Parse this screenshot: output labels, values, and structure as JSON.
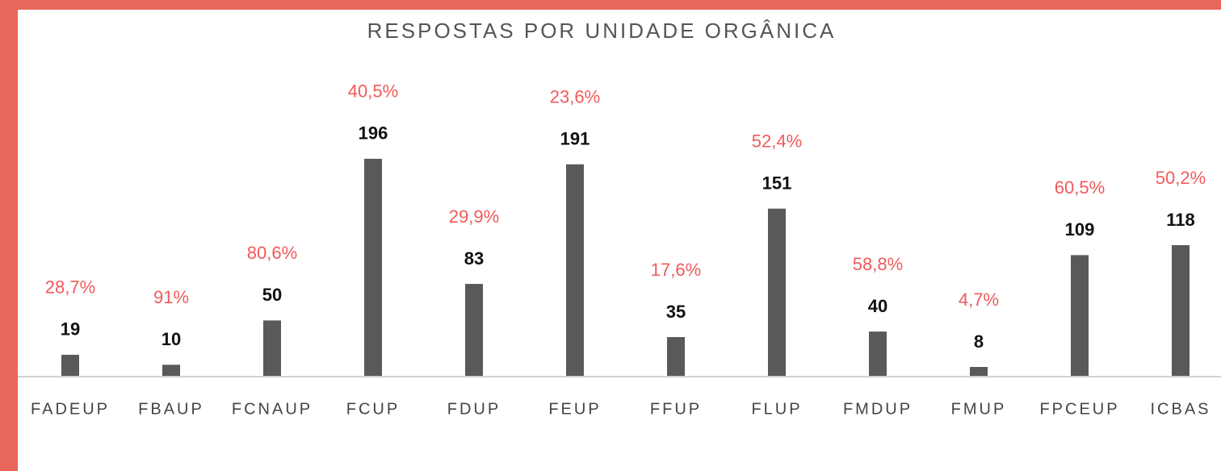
{
  "chart_data": {
    "type": "bar",
    "title": "RESPOSTAS POR UNIDADE ORGÂNICA",
    "categories": [
      "FADEUP",
      "FBAUP",
      "FCNAUP",
      "FCUP",
      "FDUP",
      "FEUP",
      "FFUP",
      "FLUP",
      "FMDUP",
      "FMUP",
      "FPCEUP",
      "ICBAS"
    ],
    "values": [
      19,
      10,
      50,
      196,
      83,
      191,
      35,
      151,
      40,
      8,
      109,
      118
    ],
    "color": "#595959",
    "rates": {
      "values": [
        28.7,
        91,
        80.6,
        40.5,
        29.9,
        23.6,
        17.6,
        52.4,
        58.8,
        4.7,
        60.5,
        50.2
      ],
      "value_labels": [
        "28,7%",
        "91%",
        "80,6%",
        "40,5%",
        "29,9%",
        "23,6%",
        "17,6%",
        "52,4%",
        "58,8%",
        "4,7%",
        "60,5%",
        "50,2%"
      ],
      "color": "#f05a5a"
    }
  }
}
